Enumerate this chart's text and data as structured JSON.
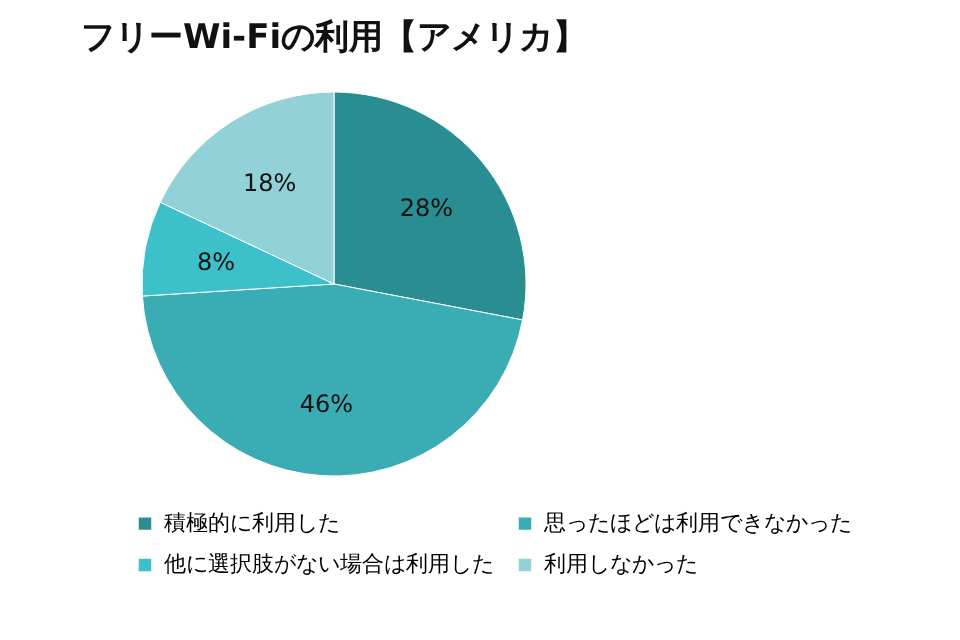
{
  "chart_data": {
    "type": "pie",
    "title": "フリーWi-Fiの利用【アメリカ】",
    "categories": [
      "積極的に利用した",
      "思ったほどは利用できなかった",
      "他に選択肢がない場合は利用した",
      "利用しなかった"
    ],
    "values": [
      28,
      46,
      8,
      18
    ],
    "colors": [
      "#2a8d91",
      "#3aacb3",
      "#3cc1ca",
      "#92d1d8"
    ],
    "value_labels": [
      "28%",
      "46%",
      "8%",
      "18%"
    ],
    "legend": "bottom"
  }
}
